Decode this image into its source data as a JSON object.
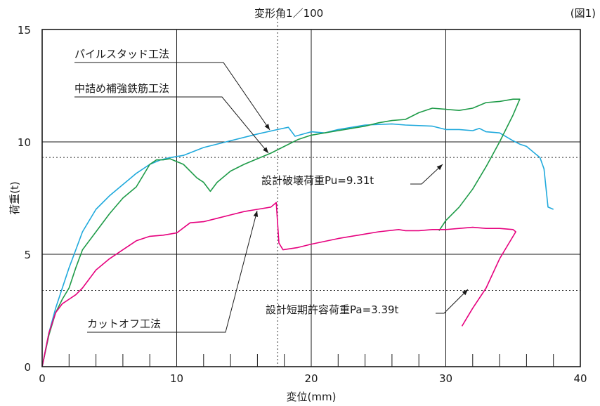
{
  "figure_label": "(図1)",
  "chart_data": {
    "type": "line",
    "title": "変形角1／100",
    "xlabel": "変位(mm)",
    "ylabel": "荷重(t)",
    "xlim": [
      0,
      40
    ],
    "ylim": [
      0,
      15
    ],
    "xticks": [
      0,
      10,
      20,
      30,
      40
    ],
    "yticks": [
      0,
      5,
      10,
      15
    ],
    "grid": true,
    "reference_lines": {
      "vertical": [
        {
          "x": 17.5,
          "label": "変形角1／100"
        }
      ],
      "horizontal": [
        {
          "y": 9.31,
          "label": "設計破壊荷重Pu=9.31t"
        },
        {
          "y": 3.39,
          "label": "設計短期許容荷重Pa=3.39t"
        }
      ]
    },
    "series": [
      {
        "name": "パイルスタッド工法",
        "color": "#1fa9dc",
        "x": [
          0,
          0.5,
          1.0,
          1.5,
          2.0,
          2.5,
          3.0,
          4.0,
          5.0,
          6.0,
          7.0,
          8.0,
          8.8,
          9.5,
          10.5,
          12.0,
          14.0,
          16.0,
          17.5,
          18.3,
          18.8,
          20.0,
          21.0,
          22.0,
          24.0,
          26.0,
          27.0,
          29.0,
          30.0,
          31.0,
          32.0,
          32.5,
          33.0,
          34.0,
          35.0,
          35.5,
          36.0,
          37.0,
          37.3,
          37.6,
          38.0
        ],
        "y": [
          0,
          1.5,
          2.6,
          3.5,
          4.4,
          5.2,
          6.0,
          7.0,
          7.6,
          8.1,
          8.6,
          9.0,
          9.2,
          9.3,
          9.4,
          9.75,
          10.05,
          10.35,
          10.55,
          10.65,
          10.25,
          10.45,
          10.4,
          10.55,
          10.75,
          10.8,
          10.75,
          10.7,
          10.55,
          10.55,
          10.5,
          10.6,
          10.45,
          10.4,
          10.05,
          9.9,
          9.8,
          9.3,
          8.8,
          7.1,
          7.0
        ]
      },
      {
        "name": "中詰め補強鉄筋工法",
        "color": "#1e9b48",
        "x": [
          0,
          0.5,
          1.0,
          1.5,
          2.0,
          2.5,
          3.0,
          4.0,
          5.0,
          6.0,
          7.0,
          7.5,
          8.0,
          8.5,
          9.0,
          9.5,
          10.5,
          11.5,
          12.0,
          12.5,
          13.0,
          14.0,
          15.0,
          16.0,
          17.0,
          18.0,
          19.0,
          20.0,
          21.0,
          22.0,
          23.0,
          24.0,
          25.0,
          26.0,
          27.0,
          28.0,
          29.0,
          30.0,
          31.0,
          32.0,
          33.0,
          34.0,
          35.0,
          35.5,
          35.0,
          34.0,
          33.0,
          32.0,
          31.0,
          30.0,
          29.5
        ],
        "y": [
          0,
          1.4,
          2.4,
          3.0,
          3.5,
          4.4,
          5.2,
          6.0,
          6.8,
          7.5,
          8.0,
          8.5,
          9.0,
          9.2,
          9.2,
          9.25,
          9.0,
          8.4,
          8.2,
          7.8,
          8.2,
          8.7,
          9.0,
          9.25,
          9.5,
          9.8,
          10.1,
          10.3,
          10.4,
          10.5,
          10.6,
          10.7,
          10.85,
          10.95,
          11.0,
          11.3,
          11.5,
          11.45,
          11.4,
          11.5,
          11.75,
          11.8,
          11.9,
          11.9,
          11.2,
          10.0,
          8.9,
          7.9,
          7.1,
          6.5,
          6.05
        ]
      },
      {
        "name": "カットオフ工法",
        "color": "#e6007e",
        "x": [
          0,
          0.5,
          1.0,
          1.5,
          2.0,
          2.5,
          3.0,
          4.0,
          5.0,
          6.0,
          7.0,
          8.0,
          9.0,
          10.0,
          11.0,
          12.0,
          13.0,
          14.0,
          15.0,
          16.0,
          17.0,
          17.4,
          17.6,
          17.9,
          19.0,
          20.0,
          22.0,
          24.0,
          25.0,
          26.5,
          27.0,
          28.0,
          29.0,
          30.0,
          31.0,
          32.0,
          33.0,
          34.0,
          35.0,
          35.2,
          34.0,
          33.0,
          32.0,
          31.5,
          31.2
        ],
        "y": [
          0,
          1.5,
          2.4,
          2.8,
          3.0,
          3.2,
          3.5,
          4.3,
          4.8,
          5.2,
          5.6,
          5.8,
          5.85,
          5.95,
          6.4,
          6.45,
          6.6,
          6.75,
          6.9,
          7.0,
          7.1,
          7.3,
          5.5,
          5.2,
          5.3,
          5.45,
          5.7,
          5.9,
          6.0,
          6.1,
          6.05,
          6.05,
          6.1,
          6.1,
          6.15,
          6.2,
          6.15,
          6.15,
          6.1,
          6.0,
          4.8,
          3.5,
          2.6,
          2.1,
          1.8
        ]
      }
    ]
  },
  "annotations": [
    {
      "text": "パイルスタッド工法"
    },
    {
      "text": "中詰め補強鉄筋工法"
    },
    {
      "text": "カットオフ工法"
    },
    {
      "text": "設計破壊荷重Pu=9.31t"
    },
    {
      "text": "設計短期許容荷重Pa=3.39t"
    }
  ]
}
